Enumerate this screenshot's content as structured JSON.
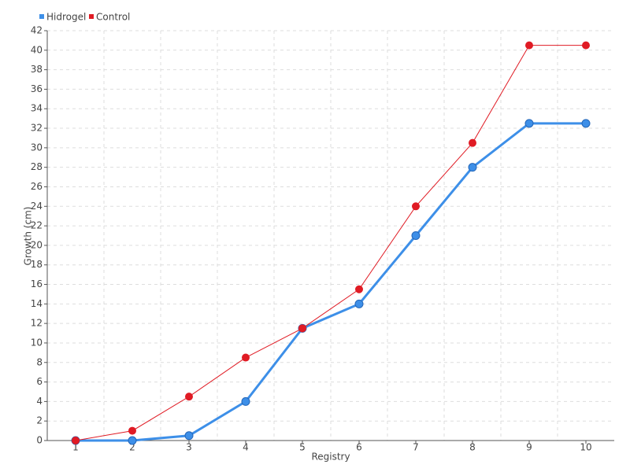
{
  "chart_data": {
    "type": "line",
    "categories": [
      "1",
      "2",
      "3",
      "4",
      "5",
      "6",
      "7",
      "8",
      "9",
      "10"
    ],
    "series": [
      {
        "name": "Hidrogel",
        "color": "#3d8fe8",
        "values": [
          0,
          0,
          0.5,
          4,
          11.5,
          14,
          21,
          28,
          32.5,
          32.5
        ]
      },
      {
        "name": "Control",
        "color": "#e01b24",
        "values": [
          0,
          1,
          4.5,
          8.5,
          11.5,
          15.5,
          24,
          30.5,
          40.5,
          40.5
        ]
      }
    ],
    "xlabel": "Registry",
    "ylabel": "Growth (cm)",
    "ylim": [
      0,
      42
    ],
    "yticks": [
      0,
      2,
      4,
      6,
      8,
      10,
      12,
      14,
      16,
      18,
      20,
      22,
      24,
      26,
      28,
      30,
      32,
      34,
      36,
      38,
      40,
      42
    ],
    "grid": true,
    "legend": "top-left"
  }
}
